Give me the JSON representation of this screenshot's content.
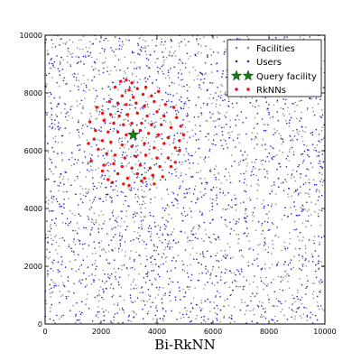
{
  "chart_data": {
    "type": "scatter",
    "title": "",
    "xlabel": "Bi-RkNN",
    "ylabel": "",
    "xlim": [
      0,
      10000
    ],
    "ylim": [
      0,
      10000
    ],
    "xticks": [
      "0",
      "2000",
      "4000",
      "6000",
      "8000",
      "10000"
    ],
    "yticks": [
      "0",
      "2000",
      "4000",
      "6000",
      "8000",
      "10000"
    ],
    "grid": false,
    "legend_position": "top-right",
    "series": [
      {
        "name": "Facilities",
        "marker": "dot",
        "color": "#8c8c8c",
        "distribution": "uniform random over the full extent",
        "approx_count": 1500
      },
      {
        "name": "Users",
        "marker": "dot",
        "color": "#2222cc",
        "distribution": "uniform random over the full extent",
        "approx_count": 1500
      },
      {
        "name": "Query facility",
        "marker": "star",
        "color": "#1a7a1a",
        "points": [
          [
            3150,
            6550
          ]
        ]
      },
      {
        "name": "RkNNs",
        "marker": "dot",
        "color": "#ee1111",
        "points": [
          [
            2700,
            8400
          ],
          [
            2900,
            8450
          ],
          [
            3100,
            8350
          ],
          [
            2500,
            8200
          ],
          [
            3000,
            8100
          ],
          [
            3300,
            8150
          ],
          [
            3600,
            8200
          ],
          [
            2750,
            7900
          ],
          [
            3150,
            7850
          ],
          [
            3500,
            7950
          ],
          [
            3800,
            7900
          ],
          [
            4050,
            8050
          ],
          [
            2300,
            7700
          ],
          [
            2600,
            7650
          ],
          [
            2900,
            7600
          ],
          [
            3250,
            7650
          ],
          [
            3550,
            7550
          ],
          [
            3900,
            7700
          ],
          [
            4300,
            7600
          ],
          [
            4600,
            7500
          ],
          [
            1850,
            7500
          ],
          [
            2050,
            7300
          ],
          [
            2350,
            7250
          ],
          [
            2650,
            7200
          ],
          [
            2950,
            7250
          ],
          [
            3300,
            7300
          ],
          [
            3650,
            7200
          ],
          [
            4000,
            7350
          ],
          [
            4250,
            7200
          ],
          [
            4700,
            7150
          ],
          [
            1600,
            7000
          ],
          [
            2100,
            7050
          ],
          [
            2450,
            6950
          ],
          [
            2800,
            6900
          ],
          [
            3100,
            6950
          ],
          [
            3450,
            6950
          ],
          [
            3800,
            6900
          ],
          [
            4150,
            6900
          ],
          [
            4500,
            6800
          ],
          [
            4850,
            6850
          ],
          [
            1800,
            6700
          ],
          [
            2250,
            6650
          ],
          [
            2600,
            6650
          ],
          [
            2900,
            6550
          ],
          [
            3400,
            6700
          ],
          [
            3700,
            6600
          ],
          [
            4050,
            6550
          ],
          [
            4400,
            6450
          ],
          [
            4800,
            6350
          ],
          [
            1750,
            6400
          ],
          [
            2050,
            6350
          ],
          [
            2350,
            6300
          ],
          [
            2750,
            6200
          ],
          [
            3100,
            6150
          ],
          [
            3550,
            6250
          ],
          [
            3900,
            6100
          ],
          [
            4250,
            6250
          ],
          [
            4650,
            6100
          ],
          [
            1900,
            6050
          ],
          [
            2200,
            5900
          ],
          [
            2500,
            5850
          ],
          [
            2850,
            5750
          ],
          [
            3250,
            5800
          ],
          [
            3600,
            5850
          ],
          [
            4000,
            5750
          ],
          [
            4400,
            5750
          ],
          [
            4800,
            6000
          ],
          [
            1650,
            5650
          ],
          [
            2100,
            5500
          ],
          [
            2450,
            5550
          ],
          [
            2750,
            5450
          ],
          [
            3100,
            5400
          ],
          [
            3400,
            5500
          ],
          [
            3750,
            5400
          ],
          [
            4100,
            5450
          ],
          [
            4500,
            5450
          ],
          [
            2050,
            5300
          ],
          [
            2600,
            5200
          ],
          [
            2950,
            5050
          ],
          [
            3300,
            5200
          ],
          [
            3550,
            5050
          ],
          [
            3850,
            5150
          ],
          [
            4200,
            5100
          ],
          [
            2400,
            4900
          ],
          [
            2800,
            4850
          ],
          [
            3000,
            4800
          ],
          [
            3450,
            4950
          ],
          [
            3900,
            4850
          ],
          [
            2250,
            5000
          ],
          [
            4650,
            5600
          ],
          [
            4950,
            6550
          ],
          [
            1550,
            6250
          ]
        ]
      }
    ]
  }
}
